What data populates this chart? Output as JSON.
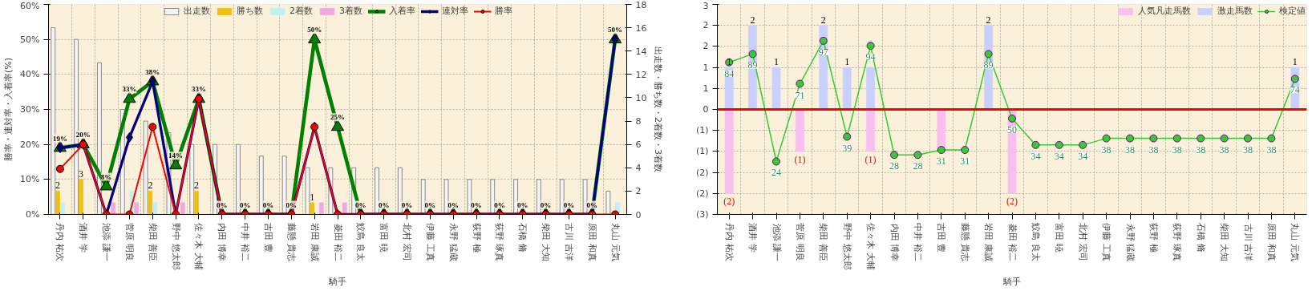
{
  "chart_data": [
    {
      "type": "bar",
      "xlabel": "騎手",
      "ylabel": "勝率・連対率・入着率(%)",
      "y2label": "出走数・勝ち数・2着数・3着数",
      "categories": [
        "丹内 祐次",
        "酒井 学",
        "池添 謙一",
        "菅原 明良",
        "柴田 善臣",
        "野中 悠太郎",
        "佐々木 大輔",
        "内田 博幸",
        "中井 裕二",
        "吉田 豊",
        "藤懸 貴志",
        "岩田 康誠",
        "菱田 裕二",
        "鮫島 良太",
        "富田 暁",
        "北村 宏司",
        "伊藤 工真",
        "永野 猛蔵",
        "荻野 極",
        "荻野 琢真",
        "石橋 脩",
        "柴田 大知",
        "古川 吉洋",
        "原田 和真",
        "丸山 元気"
      ],
      "ylim": [
        0,
        60
      ],
      "yticks": [
        {
          "value": 0,
          "label": "0%"
        },
        {
          "value": 10,
          "label": "10%"
        },
        {
          "value": 20,
          "label": "20%"
        },
        {
          "value": 30,
          "label": "30%"
        },
        {
          "value": 40,
          "label": "40%"
        },
        {
          "value": 50,
          "label": "50%"
        },
        {
          "value": 60,
          "label": "60%"
        }
      ],
      "y2lim": [
        0,
        18
      ],
      "y2ticks": [
        0,
        2,
        4,
        6,
        8,
        10,
        12,
        14,
        16,
        18
      ],
      "grid": true,
      "legend": "top",
      "series": [
        {
          "name": "出走数",
          "axis": "y2",
          "color": "#f4f4f4",
          "values": [
            16,
            15,
            13,
            9,
            8,
            7,
            6,
            6,
            6,
            5,
            5,
            4,
            4,
            4,
            4,
            4,
            3,
            3,
            3,
            3,
            3,
            3,
            3,
            3,
            2
          ]
        },
        {
          "name": "勝ち数",
          "axis": "y2",
          "color": "#f0c010",
          "values": [
            2,
            3,
            0,
            0,
            2,
            0,
            2,
            0,
            0,
            0,
            0,
            1,
            0,
            0,
            0,
            0,
            0,
            0,
            0,
            0,
            0,
            0,
            0,
            0,
            0
          ],
          "value_labels": [
            "2",
            "3",
            null,
            null,
            "2",
            null,
            "2",
            null,
            null,
            null,
            null,
            "1",
            null,
            null,
            null,
            null,
            null,
            null,
            null,
            null,
            null,
            null,
            null,
            null,
            null
          ]
        },
        {
          "name": "2着数",
          "axis": "y2",
          "color": "#c0f0f0",
          "values": [
            1,
            0,
            0,
            2,
            1,
            0,
            0,
            0,
            0,
            0,
            0,
            0,
            0,
            0,
            0,
            0,
            0,
            0,
            0,
            0,
            0,
            0,
            0,
            0,
            1
          ]
        },
        {
          "name": "3着数",
          "axis": "y2",
          "color": "#f0a8e0",
          "values": [
            0,
            0,
            1,
            1,
            0,
            1,
            0,
            0,
            0,
            0,
            0,
            1,
            1,
            0,
            0,
            0,
            0,
            0,
            0,
            0,
            0,
            0,
            0,
            0,
            0
          ]
        },
        {
          "name": "入着率",
          "type": "line",
          "axis": "y",
          "marker": "triangle",
          "color": "#008000",
          "values": [
            19,
            20,
            8,
            33,
            38,
            14,
            33,
            0,
            0,
            0,
            0,
            50,
            25,
            0,
            0,
            0,
            0,
            0,
            0,
            0,
            0,
            0,
            0,
            0,
            50
          ],
          "value_labels": [
            "19%",
            "20%",
            "8%",
            "33%",
            "38%",
            "14%",
            "33%",
            "0%",
            "0%",
            "0%",
            "0%",
            "50%",
            "25%",
            "0%",
            "0%",
            "0%",
            "0%",
            "0%",
            "0%",
            "0%",
            "0%",
            "0%",
            "0%",
            "0%",
            "50%"
          ]
        },
        {
          "name": "連対率",
          "type": "line",
          "axis": "y",
          "marker": "diamond",
          "color": "#000080",
          "values": [
            19,
            20,
            0,
            22,
            38,
            0,
            33,
            0,
            0,
            0,
            0,
            25,
            0,
            0,
            0,
            0,
            0,
            0,
            0,
            0,
            0,
            0,
            0,
            0,
            50
          ]
        },
        {
          "name": "勝率",
          "type": "line",
          "axis": "y",
          "marker": "circle",
          "color": "#ff0000",
          "values": [
            13,
            20,
            0,
            0,
            25,
            0,
            33,
            0,
            0,
            0,
            0,
            25,
            0,
            0,
            0,
            0,
            0,
            0,
            0,
            0,
            0,
            0,
            0,
            0,
            0
          ]
        }
      ]
    },
    {
      "type": "bar",
      "xlabel": "騎手",
      "stacked": true,
      "categories": [
        "丹内 祐次",
        "酒井 学",
        "池添 謙一",
        "菅原 明良",
        "柴田 善臣",
        "野中 悠太郎",
        "佐々木 大輔",
        "内田 博幸",
        "中井 裕二",
        "吉田 豊",
        "藤懸 貴志",
        "岩田 康誠",
        "菱田 裕二",
        "鮫島 良太",
        "富田 暁",
        "北村 宏司",
        "伊藤 工真",
        "永野 猛蔵",
        "荻野 極",
        "荻野 琢真",
        "石橋 脩",
        "柴田 大知",
        "古川 吉洋",
        "原田 和真",
        "丸山 元気"
      ],
      "ylim": [
        -2.5,
        2.5
      ],
      "yticks": [
        {
          "value": 2.5,
          "label": "3"
        },
        {
          "value": 2,
          "label": "2"
        },
        {
          "value": 1.5,
          "label": "2"
        },
        {
          "value": 1,
          "label": "1"
        },
        {
          "value": 0.5,
          "label": "1"
        },
        {
          "value": 0,
          "label": "0"
        },
        {
          "value": -0.5,
          "label": "(1)"
        },
        {
          "value": -1,
          "label": "(1)"
        },
        {
          "value": -1.5,
          "label": "(2)"
        },
        {
          "value": -2,
          "label": "(2)"
        },
        {
          "value": -2.5,
          "label": "(3)"
        }
      ],
      "y2lim": [
        -8,
        119
      ],
      "grid": true,
      "legend": "top right",
      "ref_lines": [
        {
          "axis": "y",
          "value": 0,
          "color": "#ff0000"
        }
      ],
      "series": [
        {
          "name": "人気凡走馬数",
          "axis": "y",
          "color": "#f8c0f0",
          "values": [
            -2,
            0,
            0,
            -1,
            0,
            0,
            -1,
            0,
            0,
            -1,
            0,
            0,
            -2,
            0,
            0,
            0,
            0,
            0,
            0,
            0,
            0,
            0,
            0,
            0,
            0
          ],
          "value_labels": [
            "(2)",
            null,
            null,
            "(1)",
            null,
            null,
            "(1)",
            null,
            null,
            null,
            null,
            null,
            "(2)",
            null,
            null,
            null,
            null,
            null,
            null,
            null,
            null,
            null,
            null,
            null,
            null
          ]
        },
        {
          "name": "激走馬数",
          "axis": "y",
          "color": "#c8d0ff",
          "values": [
            1,
            2,
            1,
            0,
            2,
            1,
            1,
            0,
            0,
            0,
            0,
            2,
            0,
            0,
            0,
            0,
            0,
            0,
            0,
            0,
            0,
            0,
            0,
            0,
            1
          ],
          "value_labels": [
            "1",
            "2",
            "1",
            null,
            "2",
            "1",
            null,
            null,
            null,
            null,
            null,
            "2",
            null,
            null,
            null,
            null,
            null,
            null,
            null,
            null,
            null,
            null,
            null,
            null,
            "1"
          ]
        },
        {
          "name": "検定値",
          "type": "line",
          "axis": "y2",
          "marker": "circle",
          "color": "#33cc33",
          "values": [
            84,
            89,
            24,
            71,
            97,
            39,
            94,
            28,
            28,
            31,
            31,
            89,
            50,
            34,
            34,
            34,
            38,
            38,
            38,
            38,
            38,
            38,
            38,
            38,
            74
          ],
          "value_labels": [
            "84",
            "89",
            "24",
            "71",
            "97",
            "39",
            "94",
            "28",
            "28",
            "31",
            "31",
            "89",
            "50",
            "34",
            "34",
            "34",
            "38",
            "38",
            "38",
            "38",
            "38",
            "38",
            "38",
            "38",
            "74"
          ]
        }
      ]
    }
  ]
}
